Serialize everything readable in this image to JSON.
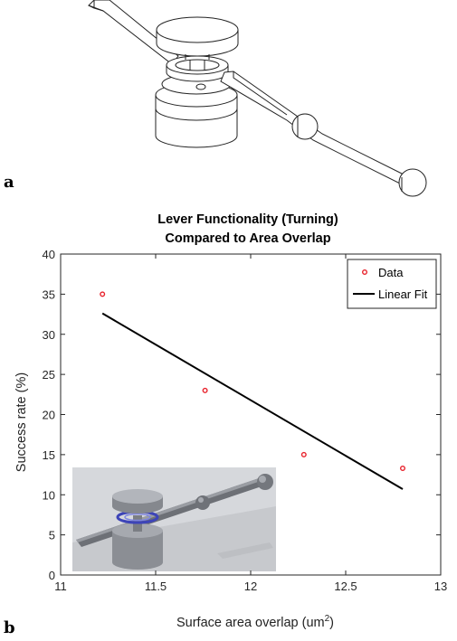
{
  "panel_labels": {
    "a": "a",
    "b": "b"
  },
  "chart_data": {
    "type": "scatter",
    "title": "Lever Functionality (Turning)",
    "subtitle": "Compared to Area Overlap",
    "xlabel": "Surface area overlap (um",
    "xlabel_superscript": "2",
    "xlabel_close": ")",
    "ylabel": "Success rate (%)",
    "xlim": [
      11,
      13
    ],
    "ylim": [
      0,
      40
    ],
    "x_ticks": [
      11,
      11.5,
      12,
      12.5,
      13
    ],
    "x_tick_labels": [
      "11",
      "11.5",
      "12",
      "12.5",
      "13"
    ],
    "y_ticks": [
      0,
      5,
      10,
      15,
      20,
      25,
      30,
      35,
      40
    ],
    "y_tick_labels": [
      "0",
      "5",
      "10",
      "15",
      "20",
      "25",
      "30",
      "35",
      "40"
    ],
    "grid": false,
    "legend_position": "top-right",
    "series": [
      {
        "name": "Data",
        "kind": "scatter",
        "color": "#e8202a",
        "x": [
          11.22,
          11.76,
          12.28,
          12.8
        ],
        "y": [
          35,
          23,
          15,
          13.3
        ]
      },
      {
        "name": "Linear Fit",
        "kind": "line",
        "color": "#000000",
        "x": [
          11.22,
          12.8
        ],
        "y": [
          32.6,
          10.7
        ]
      }
    ]
  }
}
